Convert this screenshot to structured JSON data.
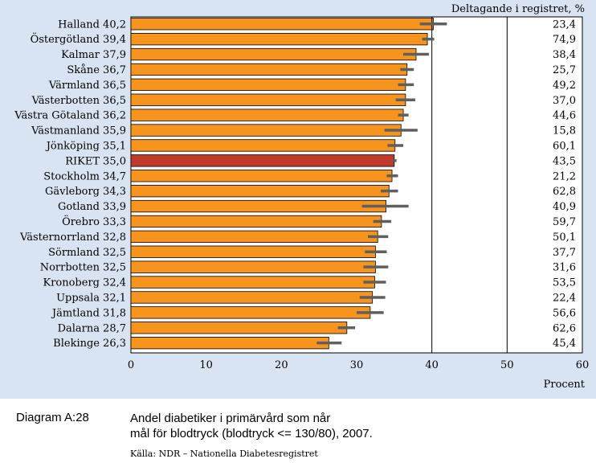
{
  "chart_data": {
    "type": "bar",
    "orientation": "horizontal",
    "categories": [
      "Halland",
      "Östergötland",
      "Kalmar",
      "Skåne",
      "Värmland",
      "Västerbotten",
      "Västra Götaland",
      "Västmanland",
      "Jönköping",
      "RIKET",
      "Stockholm",
      "Gävleborg",
      "Gotland",
      "Örebro",
      "Västernorrland",
      "Sörmland",
      "Norrbotten",
      "Kronoberg",
      "Uppsala",
      "Jämtland",
      "Dalarna",
      "Blekinge"
    ],
    "values": [
      40.2,
      39.4,
      37.9,
      36.7,
      36.5,
      36.5,
      36.2,
      35.9,
      35.1,
      35.0,
      34.7,
      34.3,
      33.9,
      33.3,
      32.8,
      32.5,
      32.5,
      32.4,
      32.1,
      31.8,
      28.7,
      26.3
    ],
    "value_labels": [
      "40,2",
      "39,4",
      "37,9",
      "36,7",
      "36,5",
      "36,5",
      "36,2",
      "35,9",
      "35,1",
      "35,0",
      "34,7",
      "34,3",
      "33,9",
      "33,3",
      "32,8",
      "32,5",
      "32,5",
      "32,4",
      "32,1",
      "31,8",
      "28,7",
      "26,3"
    ],
    "ci_low": [
      38.4,
      38.7,
      36.2,
      35.8,
      35.5,
      35.2,
      35.5,
      33.7,
      34.1,
      34.7,
      34.0,
      33.2,
      30.7,
      32.2,
      31.5,
      31.1,
      30.9,
      30.9,
      30.4,
      30.0,
      27.5,
      24.7
    ],
    "ci_high": [
      42.0,
      40.3,
      39.6,
      37.6,
      37.6,
      37.8,
      36.9,
      38.1,
      36.2,
      35.3,
      35.5,
      35.5,
      36.9,
      34.6,
      34.2,
      34.0,
      34.2,
      33.9,
      33.8,
      33.6,
      29.8,
      28.0
    ],
    "participation": [
      "23,4",
      "74,9",
      "38,4",
      "25,7",
      "49,2",
      "37,0",
      "44,6",
      "15,8",
      "60,1",
      "43,5",
      "21,2",
      "62,8",
      "40,9",
      "59,7",
      "50,1",
      "37,7",
      "31,6",
      "53,5",
      "22,4",
      "56,6",
      "62,6",
      "45,4"
    ],
    "highlight": "RIKET",
    "xlim": [
      0,
      60
    ],
    "xticks": [
      0,
      10,
      20,
      30,
      40,
      50,
      60
    ],
    "xtick_labels": [
      "0",
      "10",
      "20",
      "30",
      "40",
      "50",
      "60"
    ],
    "reference_lines": [
      40,
      50
    ],
    "xlabel": "Procent",
    "participation_header": "Deltagande i registret, %",
    "colors": {
      "bar": "#f7941e",
      "highlight": "#c0392b",
      "error": "#5f5f5f",
      "panel": "#d9e4f2",
      "table": "#ffffff"
    }
  },
  "caption": {
    "label": "Diagram A:28",
    "line1": "Andel diabetiker i primärvård som når",
    "line2": "mål för blodtryck (blodtryck <= 130/80), 2007."
  },
  "source": "Källa: NDR – Nationella Diabetesregistret"
}
